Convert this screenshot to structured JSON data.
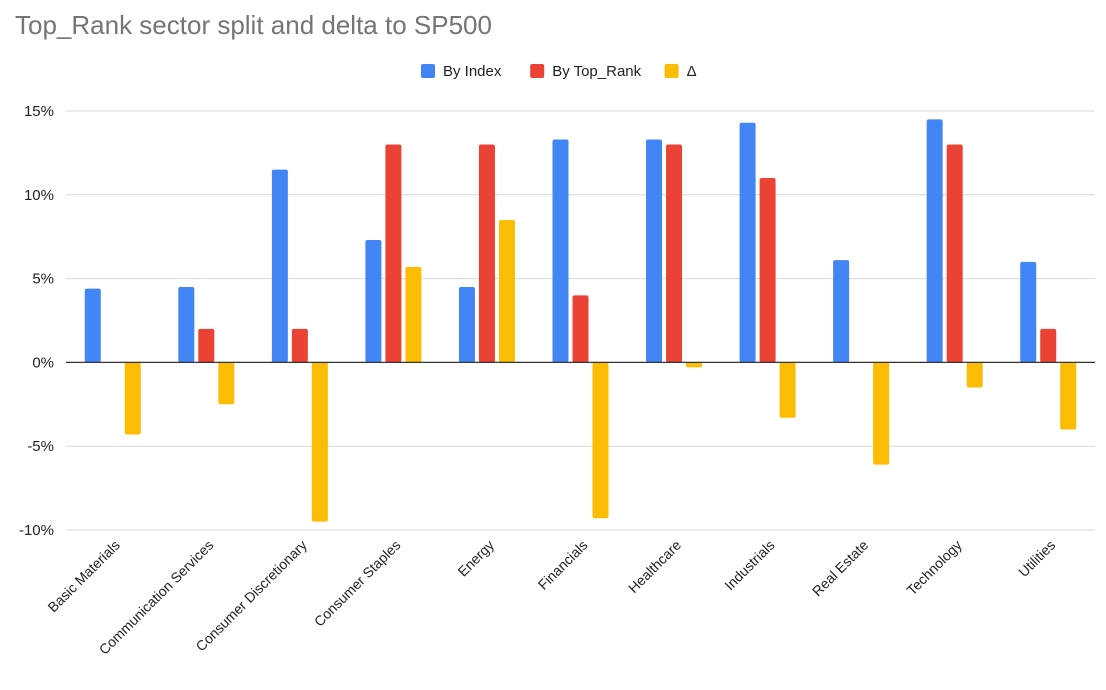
{
  "chart_data": {
    "type": "bar",
    "title": "Top_Rank sector split and delta to SP500",
    "xlabel": "",
    "ylabel": "",
    "ylim": [
      -10,
      15
    ],
    "y_ticks": [
      15,
      10,
      5,
      0,
      -5,
      -10
    ],
    "y_tick_labels": [
      "15%",
      "10%",
      "5%",
      "0%",
      "-5%",
      "-10%"
    ],
    "grid": true,
    "legend_position": "top-center",
    "categories": [
      "Basic Materials",
      "Communication Services",
      "Consumer Discretionary",
      "Consumer Staples",
      "Energy",
      "Financials",
      "Healthcare",
      "Industrials",
      "Real Estate",
      "Technology",
      "Utilities"
    ],
    "series": [
      {
        "name": "By Index",
        "color": "#4285F4",
        "values": [
          4.4,
          4.5,
          11.5,
          7.3,
          4.5,
          13.3,
          13.3,
          14.3,
          6.1,
          14.5,
          6.0
        ]
      },
      {
        "name": "By Top_Rank",
        "color": "#EA4335",
        "values": [
          0,
          2.0,
          2.0,
          13.0,
          13.0,
          4.0,
          13.0,
          11.0,
          0,
          13.0,
          2.0
        ]
      },
      {
        "name": "Δ",
        "color": "#FBBC04",
        "values": [
          -4.3,
          -2.5,
          -9.5,
          5.7,
          8.5,
          -9.3,
          -0.3,
          -3.3,
          -6.1,
          -1.5,
          -4.0
        ]
      }
    ]
  }
}
